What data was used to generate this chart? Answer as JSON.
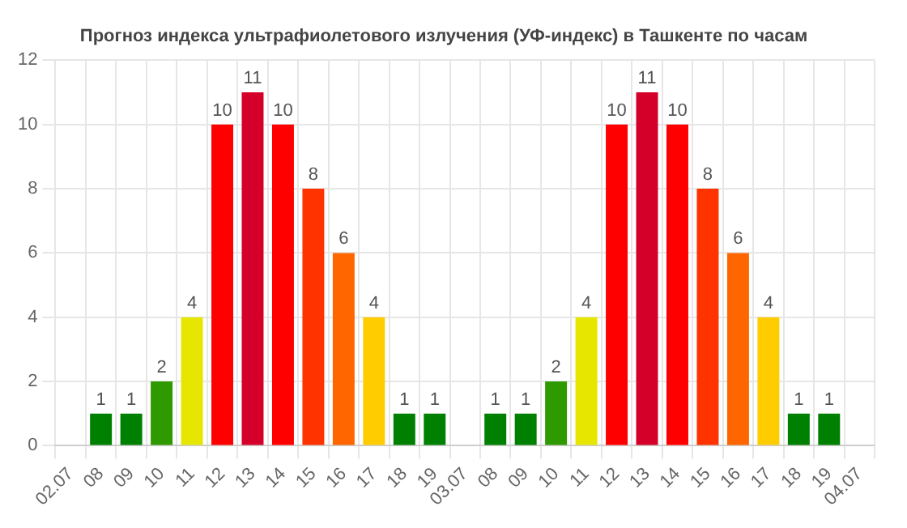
{
  "chart_data": {
    "type": "bar",
    "title": "Прогноз индекса ультрафиолетового излучения (УФ-индекс) в Ташкенте по часам",
    "categories": [
      "02.07",
      "08",
      "09",
      "10",
      "11",
      "12",
      "13",
      "14",
      "15",
      "16",
      "17",
      "18",
      "19",
      "03.07",
      "08",
      "09",
      "10",
      "11",
      "12",
      "13",
      "14",
      "15",
      "16",
      "17",
      "18",
      "19",
      "04.07"
    ],
    "values": [
      null,
      1,
      1,
      2,
      4,
      10,
      11,
      10,
      8,
      6,
      4,
      1,
      1,
      null,
      1,
      1,
      2,
      4,
      10,
      11,
      10,
      8,
      6,
      4,
      1,
      1,
      null
    ],
    "colors": [
      "#008000",
      "#008000",
      "#008000",
      "#2e9a00",
      "#e6e600",
      "#ff0000",
      "#d4002a",
      "#ff0000",
      "#ff3300",
      "#ff6600",
      "#ffcc00",
      "#008000",
      "#008000",
      "#008000",
      "#008000",
      "#008000",
      "#2e9a00",
      "#e6e600",
      "#ff0000",
      "#d4002a",
      "#ff0000",
      "#ff3300",
      "#ff6600",
      "#ffcc00",
      "#008000",
      "#008000",
      "#008000"
    ],
    "ylim": [
      0,
      12
    ],
    "yticks": [
      0,
      2,
      4,
      6,
      8,
      10,
      12
    ],
    "grid": true,
    "data_labels": true
  }
}
